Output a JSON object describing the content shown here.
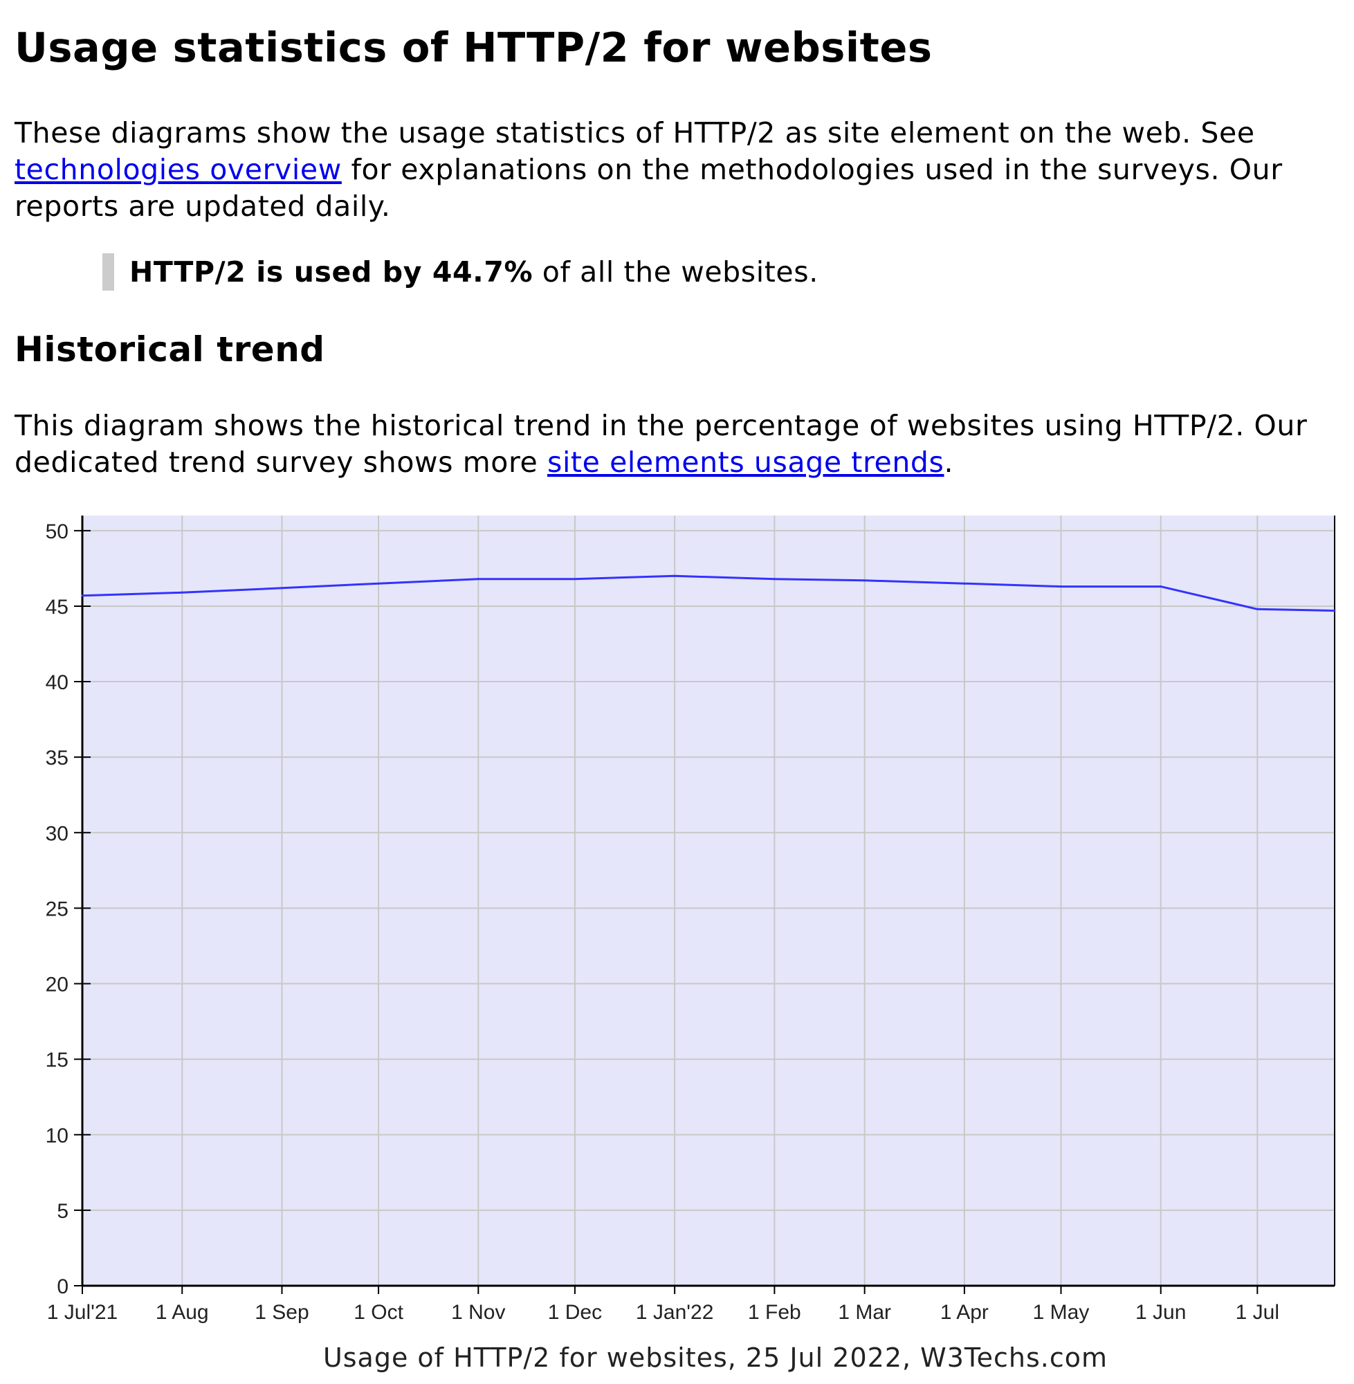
{
  "page": {
    "title": "Usage statistics of HTTP/2 for websites",
    "intro_before_link": "These diagrams show the usage statistics of HTTP/2 as site element on the web. See ",
    "intro_link": "technologies overview",
    "intro_after_link": " for explanations on the methodologies used in the surveys. Our reports are updated daily.",
    "quote_bold": "HTTP/2 is used by 44.7%",
    "quote_rest": " of all the websites.",
    "section_title": "Historical trend",
    "trend_before_link": "This diagram shows the historical trend in the percentage of websites using HTTP/2. Our dedicated trend survey shows more ",
    "trend_link": "site elements usage trends",
    "trend_after_link": "."
  },
  "colors": {
    "plot_background": "#e6e6fa",
    "grid": "#c8c8c8",
    "line": "#3333ff",
    "link": "#0000ee",
    "quote_bar": "#cccccc"
  },
  "chart_data": {
    "type": "line",
    "title": "",
    "caption": "Usage of HTTP/2 for websites, 25 Jul 2022, W3Techs.com",
    "xlabel": "",
    "ylabel": "",
    "ylim": [
      0,
      51
    ],
    "yticks": [
      0,
      5,
      10,
      15,
      20,
      25,
      30,
      35,
      40,
      45,
      50
    ],
    "x_start": "2021-07-01",
    "x_end": "2022-07-25",
    "grid": true,
    "legend": "none",
    "xticks": [
      {
        "date": "2021-07-01",
        "label": "1 Jul'21"
      },
      {
        "date": "2021-08-01",
        "label": "1 Aug"
      },
      {
        "date": "2021-09-01",
        "label": "1 Sep"
      },
      {
        "date": "2021-10-01",
        "label": "1 Oct"
      },
      {
        "date": "2021-11-01",
        "label": "1 Nov"
      },
      {
        "date": "2021-12-01",
        "label": "1 Dec"
      },
      {
        "date": "2022-01-01",
        "label": "1 Jan'22"
      },
      {
        "date": "2022-02-01",
        "label": "1 Feb"
      },
      {
        "date": "2022-03-01",
        "label": "1 Mar"
      },
      {
        "date": "2022-04-01",
        "label": "1 Apr"
      },
      {
        "date": "2022-05-01",
        "label": "1 May"
      },
      {
        "date": "2022-06-01",
        "label": "1 Jun"
      },
      {
        "date": "2022-07-01",
        "label": "1 Jul"
      }
    ],
    "series": [
      {
        "points": [
          {
            "x": "2021-07-01",
            "y": 45.7
          },
          {
            "x": "2021-08-01",
            "y": 45.9
          },
          {
            "x": "2021-09-01",
            "y": 46.2
          },
          {
            "x": "2021-10-01",
            "y": 46.5
          },
          {
            "x": "2021-11-01",
            "y": 46.8
          },
          {
            "x": "2021-12-01",
            "y": 46.8
          },
          {
            "x": "2022-01-01",
            "y": 47.0
          },
          {
            "x": "2022-02-01",
            "y": 46.8
          },
          {
            "x": "2022-03-01",
            "y": 46.7
          },
          {
            "x": "2022-04-01",
            "y": 46.5
          },
          {
            "x": "2022-05-01",
            "y": 46.3
          },
          {
            "x": "2022-06-01",
            "y": 46.3
          },
          {
            "x": "2022-07-01",
            "y": 44.8
          },
          {
            "x": "2022-07-25",
            "y": 44.7
          }
        ]
      }
    ]
  }
}
